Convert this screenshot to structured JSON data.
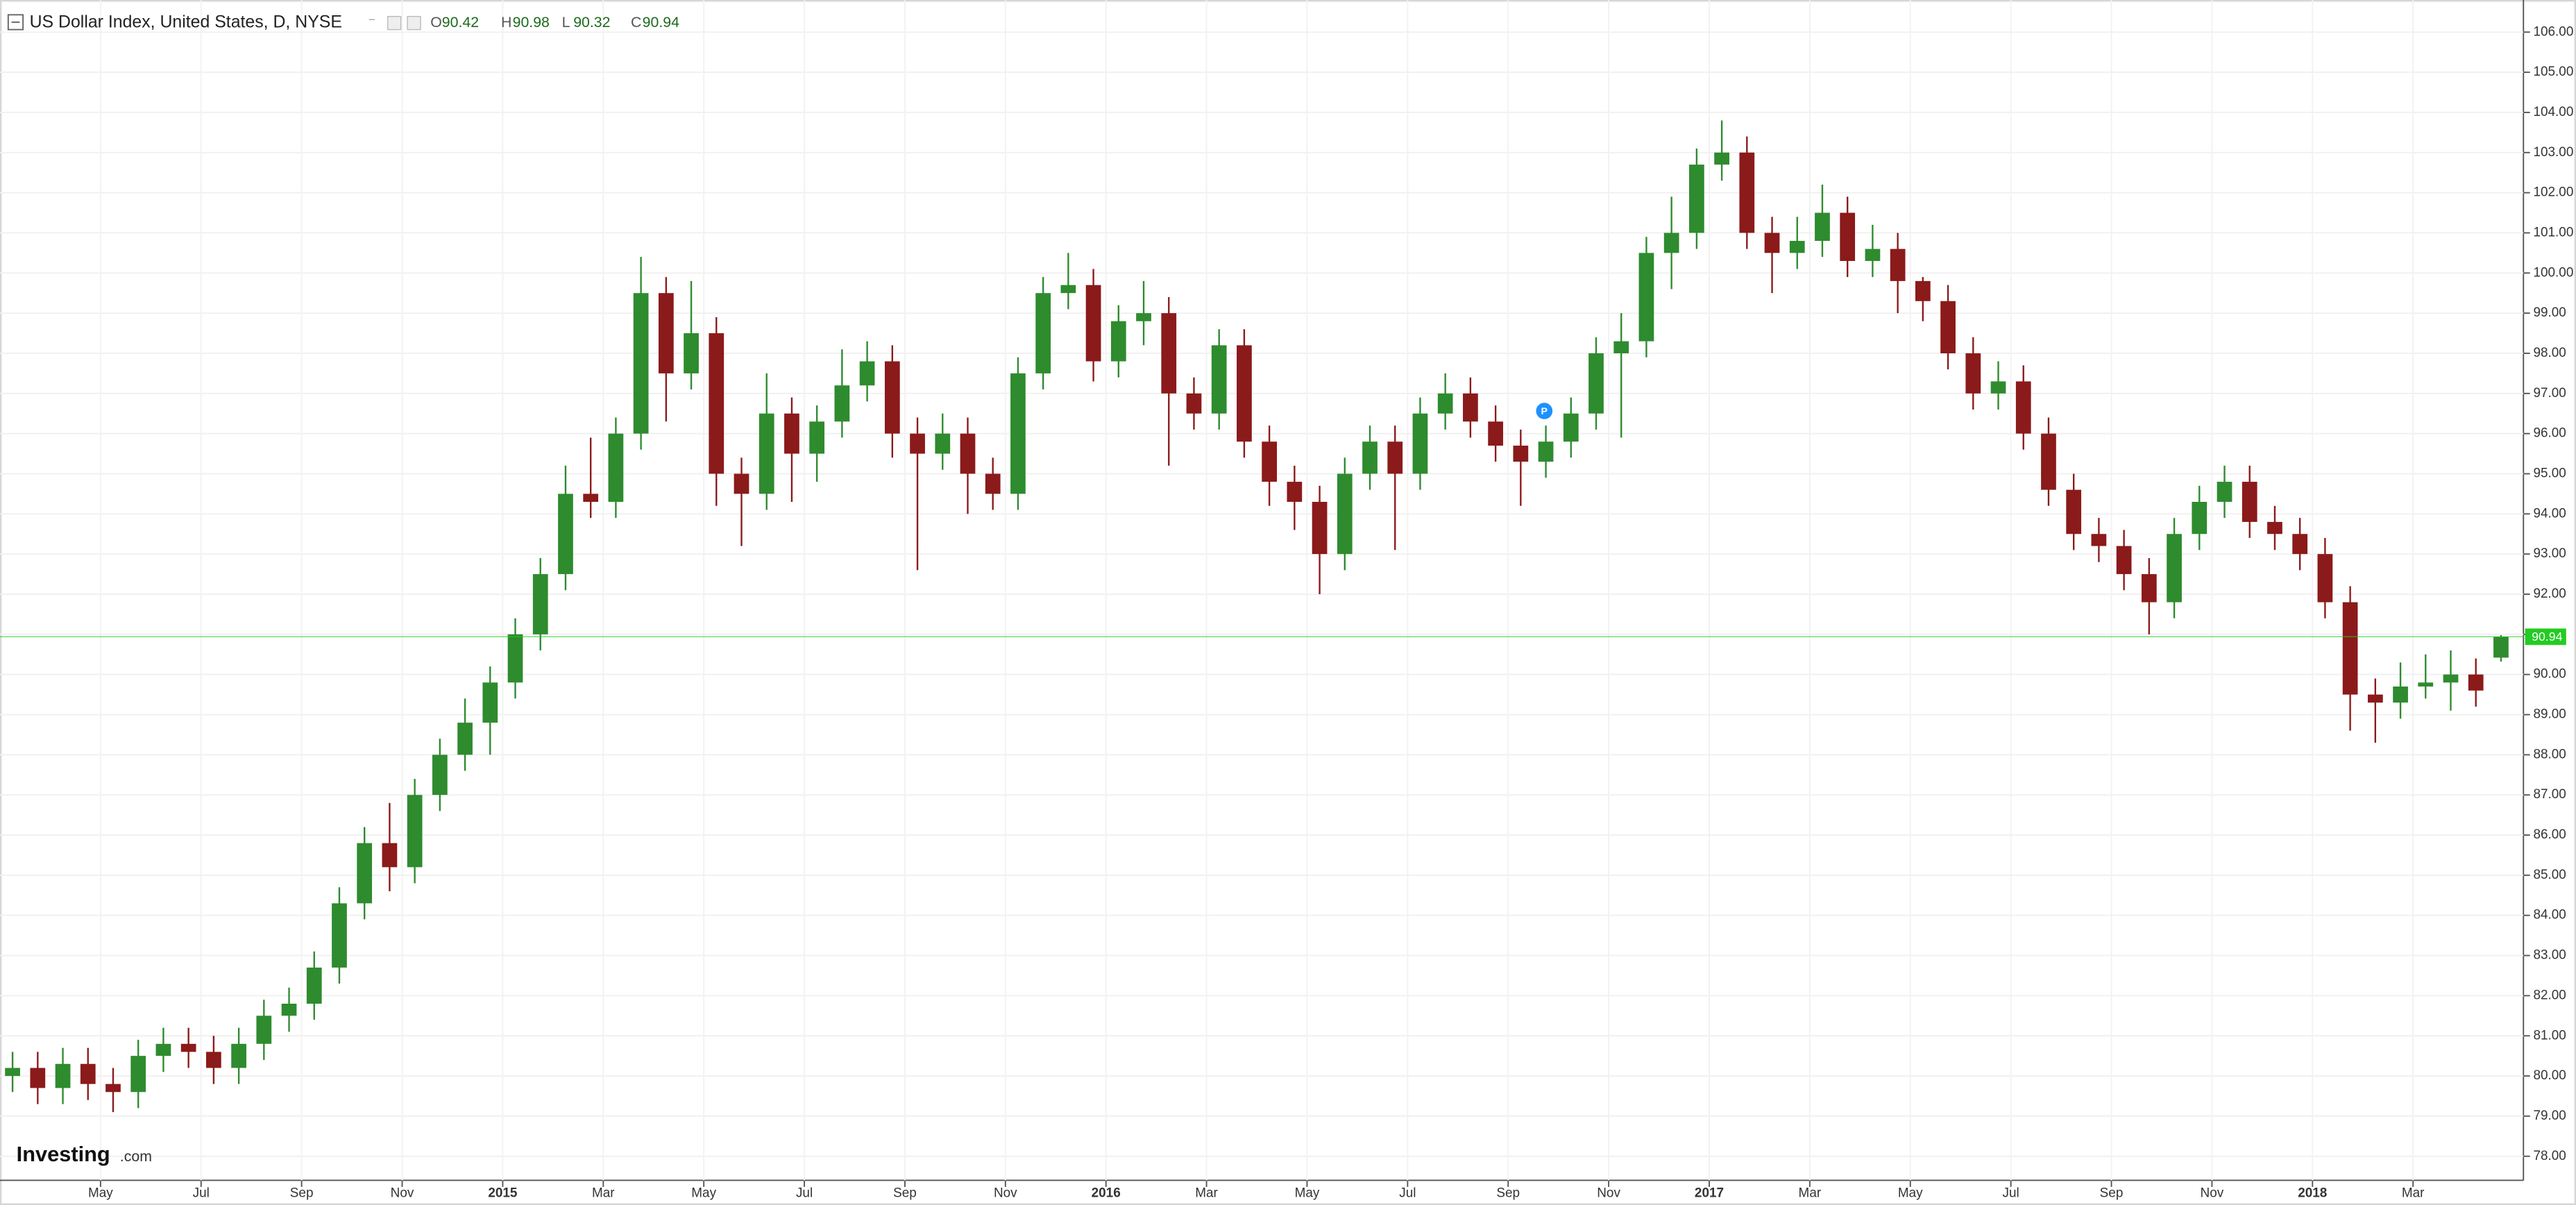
{
  "chart_data": {
    "type": "candlestick",
    "title": "US Dollar Index, United States, D, NYSE",
    "ohlc_labels": [
      "O",
      "H",
      "L",
      "C"
    ],
    "logo": [
      "Investing",
      ".com"
    ],
    "up_color": "#2e8b2e",
    "down_color": "#8b1a1a",
    "last_price_color": "#22cc22",
    "grid": true,
    "categories": [
      null,
      null,
      null,
      null,
      "May",
      null,
      null,
      null,
      "Jul",
      null,
      null,
      null,
      "Sep",
      null,
      null,
      null,
      "Nov",
      null,
      null,
      null,
      "2015",
      null,
      null,
      null,
      "Mar",
      null,
      null,
      null,
      "May",
      null,
      null,
      null,
      "Jul",
      null,
      null,
      null,
      "Sep",
      null,
      null,
      null,
      "Nov",
      null,
      null,
      null,
      "2016",
      null,
      null,
      null,
      "Mar",
      null,
      null,
      null,
      "May",
      null,
      null,
      null,
      "Jul",
      null,
      null,
      null,
      "Sep",
      null,
      null,
      null,
      "Nov",
      null,
      null,
      null,
      "2017",
      null,
      null,
      null,
      "Mar",
      null,
      null,
      null,
      "May",
      null,
      null,
      null,
      "Jul",
      null,
      null,
      null,
      "Sep",
      null,
      null,
      null,
      "Nov",
      null,
      null,
      null,
      "2018",
      null,
      null,
      null,
      "Mar",
      null,
      null,
      null
    ],
    "open": [
      80.0,
      80.2,
      79.7,
      80.3,
      79.8,
      79.6,
      80.5,
      80.8,
      80.6,
      80.2,
      80.8,
      81.5,
      81.8,
      82.7,
      84.3,
      85.8,
      85.2,
      87.0,
      88.0,
      88.8,
      89.8,
      91.0,
      92.5,
      94.5,
      94.3,
      96.0,
      99.5,
      97.5,
      98.5,
      95.0,
      94.5,
      96.5,
      95.5,
      96.3,
      97.2,
      97.8,
      96.0,
      95.5,
      96.0,
      95.0,
      94.5,
      97.5,
      99.5,
      99.7,
      97.8,
      98.8,
      99.0,
      97.0,
      96.5,
      98.2,
      95.8,
      94.8,
      94.3,
      93.0,
      95.0,
      95.8,
      95.0,
      96.5,
      97.0,
      96.3,
      95.7,
      95.3,
      95.8,
      96.5,
      98.0,
      98.3,
      100.5,
      101.0,
      102.7,
      103.0,
      101.0,
      100.5,
      100.8,
      101.5,
      100.3,
      100.6,
      99.8,
      99.3,
      98.0,
      97.0,
      97.3,
      96.0,
      94.6,
      93.5,
      93.2,
      92.5,
      91.8,
      93.5,
      94.3,
      94.8,
      93.8,
      93.5,
      93.0,
      91.8,
      89.5,
      89.3,
      89.7,
      89.8,
      90.0,
      90.42
    ],
    "high": [
      80.6,
      80.6,
      80.7,
      80.7,
      80.2,
      80.9,
      81.2,
      81.2,
      81.0,
      81.2,
      81.9,
      82.2,
      83.1,
      84.7,
      86.2,
      86.8,
      87.4,
      88.4,
      89.4,
      90.2,
      91.4,
      92.9,
      95.2,
      95.9,
      96.4,
      100.4,
      99.9,
      99.8,
      98.9,
      95.4,
      97.5,
      96.9,
      96.7,
      98.1,
      98.3,
      98.2,
      96.4,
      96.5,
      96.4,
      95.4,
      97.9,
      99.9,
      100.5,
      100.1,
      99.2,
      99.8,
      99.4,
      97.4,
      98.6,
      98.6,
      96.2,
      95.2,
      94.7,
      95.4,
      96.2,
      96.2,
      96.9,
      97.5,
      97.4,
      96.7,
      96.1,
      96.2,
      96.9,
      98.4,
      99.0,
      100.9,
      101.9,
      103.1,
      103.8,
      103.4,
      101.4,
      101.4,
      102.2,
      101.9,
      101.2,
      101.0,
      99.9,
      99.7,
      98.4,
      97.8,
      97.7,
      96.4,
      95.0,
      93.9,
      93.6,
      92.9,
      93.9,
      94.7,
      95.2,
      95.2,
      94.2,
      93.9,
      93.4,
      92.2,
      89.9,
      90.3,
      90.5,
      90.6,
      90.4,
      90.98
    ],
    "low": [
      79.6,
      79.3,
      79.3,
      79.4,
      79.1,
      79.2,
      80.1,
      80.2,
      79.8,
      79.8,
      80.4,
      81.1,
      81.4,
      82.3,
      83.9,
      84.6,
      84.8,
      86.6,
      87.6,
      88.0,
      89.4,
      90.6,
      92.1,
      93.9,
      93.9,
      95.6,
      96.3,
      97.1,
      94.2,
      93.2,
      94.1,
      94.3,
      94.8,
      95.9,
      96.8,
      95.4,
      92.6,
      95.1,
      94.0,
      94.1,
      94.1,
      97.1,
      99.1,
      97.3,
      97.4,
      98.2,
      95.2,
      96.1,
      96.1,
      95.4,
      94.2,
      93.6,
      92.0,
      92.6,
      94.6,
      93.1,
      94.6,
      96.1,
      95.9,
      95.3,
      94.2,
      94.9,
      95.4,
      96.1,
      95.9,
      97.9,
      99.6,
      100.6,
      102.3,
      100.6,
      99.5,
      100.1,
      100.4,
      99.9,
      99.9,
      99.0,
      98.8,
      97.6,
      96.6,
      96.6,
      95.6,
      94.2,
      93.1,
      92.8,
      92.1,
      91.0,
      91.4,
      93.1,
      93.9,
      93.4,
      93.1,
      92.6,
      91.4,
      88.6,
      88.3,
      88.9,
      89.4,
      89.1,
      89.2,
      90.32
    ],
    "close": [
      80.2,
      79.7,
      80.3,
      79.8,
      79.6,
      80.5,
      80.8,
      80.6,
      80.2,
      80.8,
      81.5,
      81.8,
      82.7,
      84.3,
      85.8,
      85.2,
      87.0,
      88.0,
      88.8,
      89.8,
      91.0,
      92.5,
      94.5,
      94.3,
      96.0,
      99.5,
      97.5,
      98.5,
      95.0,
      94.5,
      96.5,
      95.5,
      96.3,
      97.2,
      97.8,
      96.0,
      95.5,
      96.0,
      95.0,
      94.5,
      97.5,
      99.5,
      99.7,
      97.8,
      98.8,
      99.0,
      97.0,
      96.5,
      98.2,
      95.8,
      94.8,
      94.3,
      93.0,
      95.0,
      95.8,
      95.0,
      96.5,
      97.0,
      96.3,
      95.7,
      95.3,
      95.8,
      96.5,
      98.0,
      98.3,
      100.5,
      101.0,
      102.7,
      103.0,
      101.0,
      100.5,
      100.8,
      101.5,
      100.3,
      100.6,
      99.8,
      99.3,
      98.0,
      97.0,
      97.3,
      96.0,
      94.6,
      93.5,
      93.2,
      92.5,
      91.8,
      93.5,
      94.3,
      94.8,
      93.8,
      93.5,
      93.0,
      91.8,
      89.5,
      89.3,
      89.7,
      89.8,
      90.0,
      89.6,
      90.94
    ],
    "ylim": [
      77.4,
      106.8
    ],
    "yticks": [
      {
        "value": 78,
        "label": "78.00"
      },
      {
        "value": 79,
        "label": "79.00"
      },
      {
        "value": 80,
        "label": "80.00"
      },
      {
        "value": 81,
        "label": "81.00"
      },
      {
        "value": 82,
        "label": "82.00"
      },
      {
        "value": 83,
        "label": "83.00"
      },
      {
        "value": 84,
        "label": "84.00"
      },
      {
        "value": 85,
        "label": "85.00"
      },
      {
        "value": 86,
        "label": "86.00"
      },
      {
        "value": 87,
        "label": "87.00"
      },
      {
        "value": 88,
        "label": "88.00"
      },
      {
        "value": 89,
        "label": "89.00"
      },
      {
        "value": 90,
        "label": "90.00"
      },
      {
        "value": 91,
        "label": "91.00"
      },
      {
        "value": 92,
        "label": "92.00"
      },
      {
        "value": 93,
        "label": "93.00"
      },
      {
        "value": 94,
        "label": "94.00"
      },
      {
        "value": 95,
        "label": "95.00"
      },
      {
        "value": 96,
        "label": "96.00"
      },
      {
        "value": 97,
        "label": "97.00"
      },
      {
        "value": 98,
        "label": "98.00"
      },
      {
        "value": 99,
        "label": "99.00"
      },
      {
        "value": 100,
        "label": "100.00"
      },
      {
        "value": 101,
        "label": "101.00"
      },
      {
        "value": 102,
        "label": "102.00"
      },
      {
        "value": 103,
        "label": "103.00"
      },
      {
        "value": 104,
        "label": "104.00"
      },
      {
        "value": 105,
        "label": "105.00"
      },
      {
        "value": 106,
        "label": "106.00"
      }
    ]
  }
}
